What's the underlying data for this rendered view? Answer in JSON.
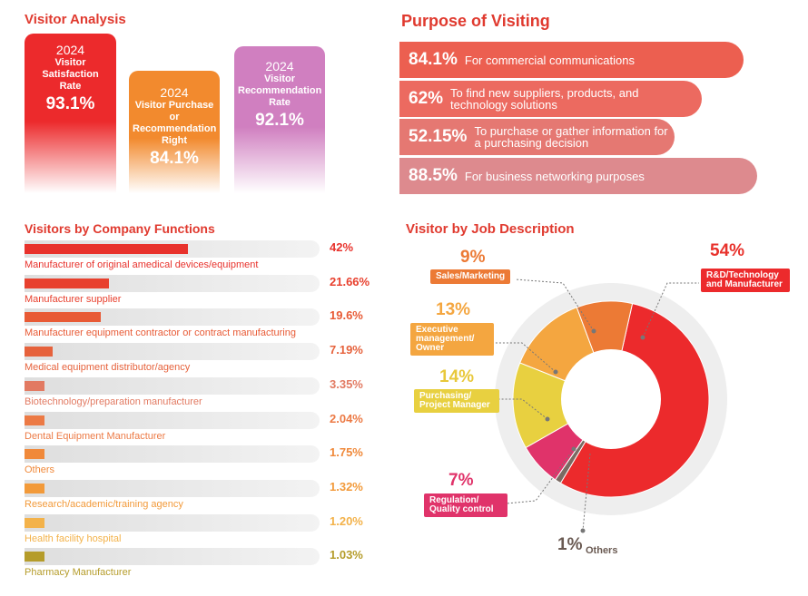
{
  "visitor_analysis": {
    "title": "Visitor Analysis",
    "cards": [
      {
        "year": "2024",
        "label": "Visitor Satisfaction Rate",
        "value": "93.1%",
        "color": "#ec2a2c"
      },
      {
        "year": "2024",
        "label": "Visitor Purchase or Recommendation Right",
        "value": "84.1%",
        "color": "#f28a2e"
      },
      {
        "year": "2024",
        "label": "Visitor Recommendation Rate",
        "value": "92.1%",
        "color": "#d07fc0"
      }
    ]
  },
  "purpose": {
    "title": "Purpose of Visiting",
    "items": [
      {
        "pct": "84.1%",
        "text": "For commercial communications",
        "color": "#ec5f50"
      },
      {
        "pct": "62%",
        "text": "To find new suppliers, products, and technology solutions",
        "color": "#ec6a60"
      },
      {
        "pct": "52.15%",
        "text": "To purchase or gather information for a purchasing decision",
        "color": "#e57872"
      },
      {
        "pct": "88.5%",
        "text": "For business networking purposes",
        "color": "#dd8a8e"
      }
    ]
  },
  "functions": {
    "title": "Visitors by Company Functions",
    "items": [
      {
        "label": "Manufacturer of original amedical devices/equipment",
        "pct": "42%",
        "value": 42,
        "color": "#e8322c"
      },
      {
        "label": "Manufacturer supplier",
        "pct": "21.66%",
        "value": 21.66,
        "color": "#e8402e"
      },
      {
        "label": "Manufacturer equipment contractor or contract manufacturing",
        "pct": "19.6%",
        "value": 19.6,
        "color": "#e85a35"
      },
      {
        "label": "Medical equipment distributor/agency",
        "pct": "7.19%",
        "value": 7.19,
        "color": "#e6623c"
      },
      {
        "label": "Biotechnology/preparation manufacturer",
        "pct": "3.35%",
        "value": 3.35,
        "color": "#e27a62"
      },
      {
        "label": "Dental Equipment Manufacturer",
        "pct": "2.04%",
        "value": 2.04,
        "color": "#ec7a45"
      },
      {
        "label": "Others",
        "pct": "1.75%",
        "value": 1.75,
        "color": "#f0893a"
      },
      {
        "label": "Research/academic/training agency",
        "pct": "1.32%",
        "value": 1.32,
        "color": "#f29a3a"
      },
      {
        "label": "Health facility hospital",
        "pct": "1.20%",
        "value": 1.2,
        "color": "#f3b24a"
      },
      {
        "label": "Pharmacy Manufacturer",
        "pct": "1.03%",
        "value": 1.03,
        "color": "#b59c2a"
      }
    ]
  },
  "jobs": {
    "title": "Visitor by Job Description",
    "items": [
      {
        "label": "R&D/Technology and Manufacturer",
        "pct": "54%",
        "value": 54,
        "color": "#ec2a2c"
      },
      {
        "label": "Others",
        "pct": "1%",
        "value": 1,
        "color": "#7a6a62"
      },
      {
        "label": "Regulation/ Quality control",
        "pct": "7%",
        "value": 7,
        "color": "#e0336a"
      },
      {
        "label": "Purchasing/ Project Manager",
        "pct": "14%",
        "value": 14,
        "color": "#e8d040"
      },
      {
        "label": "Executive management/ Owner",
        "pct": "13%",
        "value": 13,
        "color": "#f4a640"
      },
      {
        "label": "Sales/Marketing",
        "pct": "9%",
        "value": 9,
        "color": "#ec7a35"
      }
    ]
  },
  "chart_data": [
    {
      "type": "bar",
      "title": "Visitors by Company Functions",
      "categories": [
        "Manufacturer of original amedical devices/equipment",
        "Manufacturer supplier",
        "Manufacturer equipment contractor or contract manufacturing",
        "Medical equipment distributor/agency",
        "Biotechnology/preparation manufacturer",
        "Dental Equipment Manufacturer",
        "Others",
        "Research/academic/training agency",
        "Health facility hospital",
        "Pharmacy Manufacturer"
      ],
      "values": [
        42,
        21.66,
        19.6,
        7.19,
        3.35,
        2.04,
        1.75,
        1.32,
        1.2,
        1.03
      ],
      "xlabel": "",
      "ylabel": ""
    },
    {
      "type": "pie",
      "title": "Visitor by Job Description",
      "categories": [
        "R&D/Technology and Manufacturer",
        "Others",
        "Regulation/ Quality control",
        "Purchasing/ Project Manager",
        "Executive management/ Owner",
        "Sales/Marketing"
      ],
      "values": [
        54,
        1,
        7,
        14,
        13,
        9
      ]
    }
  ]
}
